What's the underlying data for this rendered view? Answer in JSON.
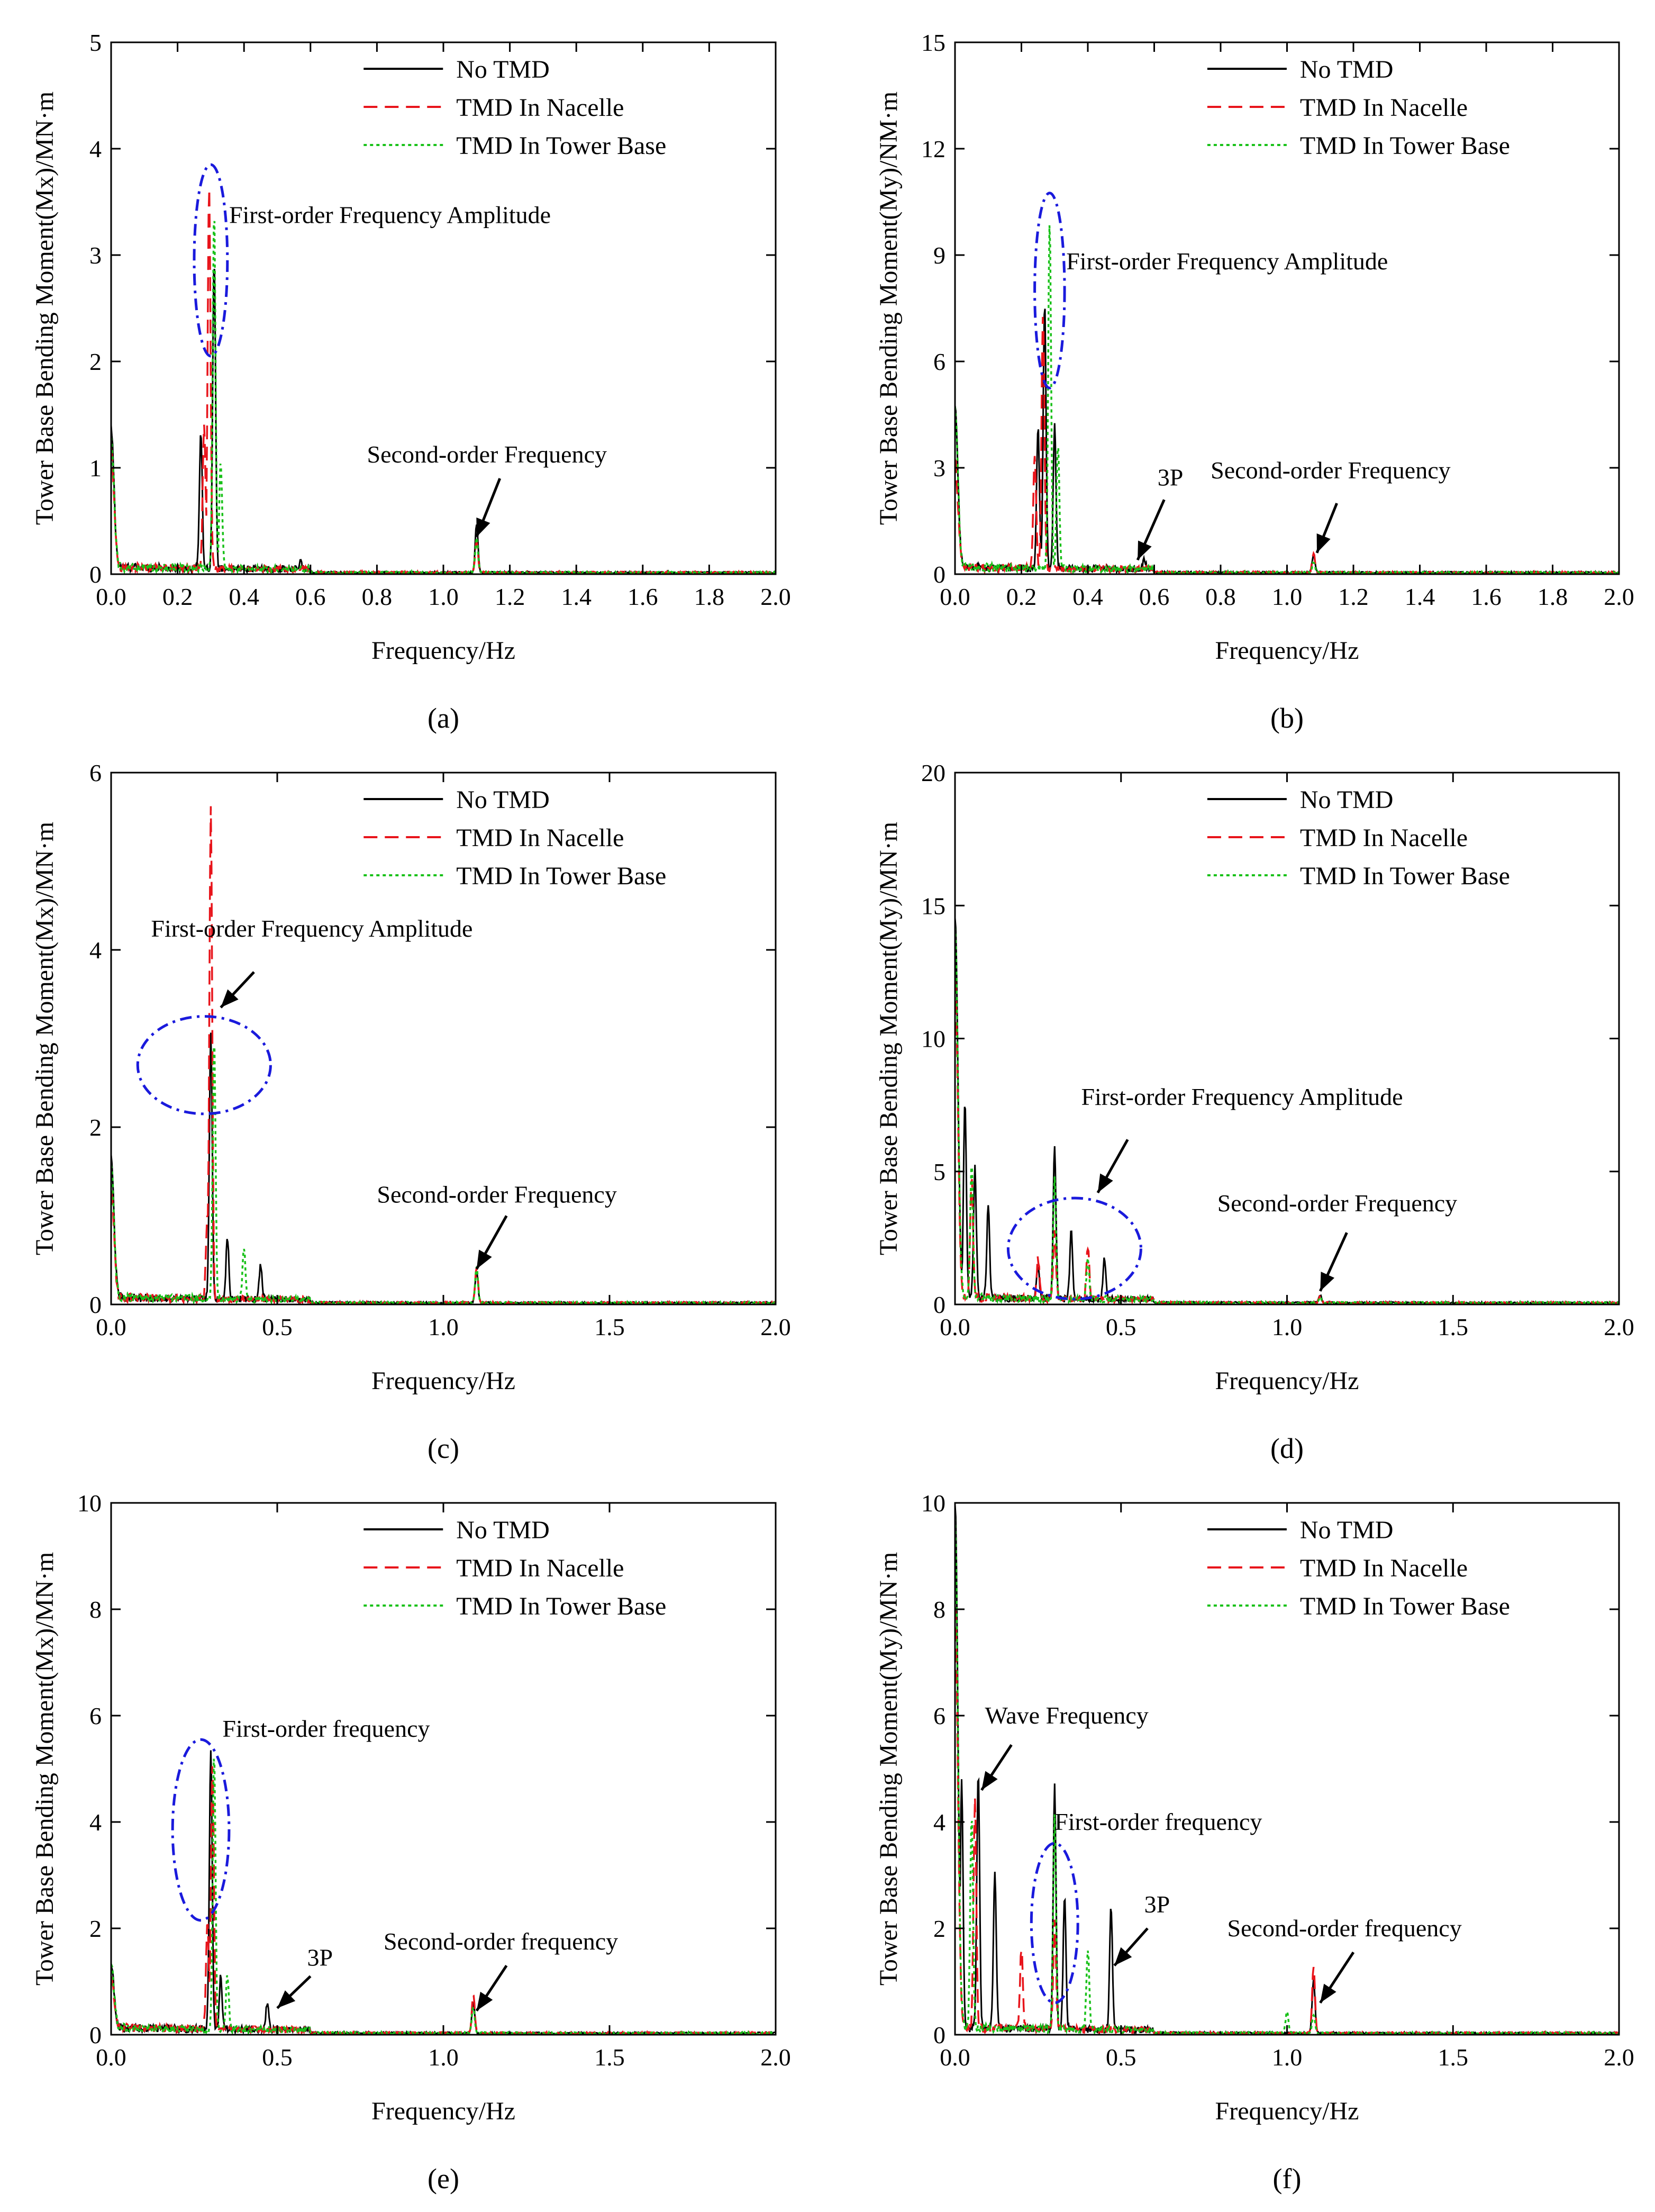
{
  "colors": {
    "no_tmd": "#000000",
    "tmd_nacelle": "#e8141b",
    "tmd_tower_base": "#19c119",
    "highlight_ellipse": "#1a1adc",
    "arrow": "#000000"
  },
  "chart_data": [
    {
      "type": "line",
      "label": "(a)",
      "xlabel": "Frequency/Hz",
      "ylabel": "Tower Base Bending Moment(Mx)/MN·m",
      "xlim": [
        0,
        2
      ],
      "ylim": [
        0,
        5
      ],
      "xticks": [
        "0.0",
        "0.2",
        "0.4",
        "0.6",
        "0.8",
        "1.0",
        "1.2",
        "1.4",
        "1.6",
        "1.8",
        "2.0"
      ],
      "yticks": [
        "0",
        "1",
        "2",
        "3",
        "4",
        "5"
      ],
      "legend": [
        "No TMD",
        "TMD In Nacelle",
        "TMD In Tower Base"
      ],
      "legend_position": "top-right",
      "series": [
        {
          "name": "No TMD",
          "peaks": [
            [
              0.0,
              1.3
            ],
            [
              0.27,
              1.3
            ],
            [
              0.31,
              2.9
            ],
            [
              0.57,
              0.07
            ],
            [
              1.1,
              0.46
            ]
          ]
        },
        {
          "name": "TMD In Nacelle",
          "peaks": [
            [
              0.0,
              1.1
            ],
            [
              0.28,
              1.35
            ],
            [
              0.295,
              3.6
            ],
            [
              1.1,
              0.3
            ]
          ]
        },
        {
          "name": "TMD In Tower Base",
          "peaks": [
            [
              0.0,
              1.2
            ],
            [
              0.31,
              3.35
            ],
            [
              0.33,
              1.0
            ],
            [
              1.1,
              0.32
            ]
          ]
        }
      ],
      "annotations": [
        {
          "text": "First-order Frequency Amplitude",
          "at": [
            0.355,
            3.3
          ],
          "ellipse": {
            "cx": 0.3,
            "cy": 2.95,
            "rx": 0.05,
            "ry": 0.9
          }
        },
        {
          "text": "Second-order Frequency",
          "at": [
            0.77,
            1.05
          ],
          "arrow_from": [
            1.17,
            0.9
          ],
          "arrow_to": [
            1.1,
            0.35
          ]
        }
      ]
    },
    {
      "type": "line",
      "label": "(b)",
      "xlabel": "Frequency/Hz",
      "ylabel": "Tower Base Bending Moment(My)/NM·m",
      "xlim": [
        0,
        2
      ],
      "ylim": [
        0,
        15
      ],
      "xticks": [
        "0.0",
        "0.2",
        "0.4",
        "0.6",
        "0.8",
        "1.0",
        "1.2",
        "1.4",
        "1.6",
        "1.8",
        "2.0"
      ],
      "yticks": [
        "0",
        "3",
        "6",
        "9",
        "12",
        "15"
      ],
      "legend": [
        "No TMD",
        "TMD In Nacelle",
        "TMD In Tower Base"
      ],
      "legend_position": "top-right",
      "series": [
        {
          "name": "No TMD",
          "peaks": [
            [
              0.0,
              4.5
            ],
            [
              0.25,
              4.0
            ],
            [
              0.27,
              7.5
            ],
            [
              0.3,
              4.0
            ],
            [
              0.57,
              0.3
            ],
            [
              1.08,
              0.5
            ]
          ]
        },
        {
          "name": "TMD In Nacelle",
          "peaks": [
            [
              0.0,
              3.0
            ],
            [
              0.24,
              3.2
            ],
            [
              0.265,
              7.2
            ],
            [
              1.08,
              0.55
            ]
          ]
        },
        {
          "name": "TMD In Tower Base",
          "peaks": [
            [
              0.0,
              4.5
            ],
            [
              0.285,
              9.8
            ],
            [
              0.31,
              3.5
            ],
            [
              1.08,
              0.3
            ]
          ]
        }
      ],
      "annotations": [
        {
          "text": "First-order Frequency Amplitude",
          "at": [
            0.335,
            8.6
          ],
          "ellipse": {
            "cx": 0.285,
            "cy": 8.0,
            "rx": 0.045,
            "ry": 2.75
          }
        },
        {
          "text": "3P",
          "at": [
            0.61,
            2.5
          ],
          "arrow_from": [
            0.63,
            2.1
          ],
          "arrow_to": [
            0.55,
            0.4
          ]
        },
        {
          "text": "Second-order Frequency",
          "at": [
            0.77,
            2.7
          ],
          "arrow_from": [
            1.15,
            2.0
          ],
          "arrow_to": [
            1.09,
            0.6
          ]
        }
      ]
    },
    {
      "type": "line",
      "label": "(c)",
      "xlabel": "Frequency/Hz",
      "ylabel": "Tower Base Bending Moment(Mx)/MN·m",
      "xlim": [
        0,
        2
      ],
      "ylim": [
        0,
        6
      ],
      "xticks": [
        "0.0",
        "0.5",
        "1.0",
        "1.5",
        "2.0"
      ],
      "yticks": [
        "0",
        "2",
        "4",
        "6"
      ],
      "legend": [
        "No TMD",
        "TMD In Nacelle",
        "TMD In Tower Base"
      ],
      "legend_position": "top-right",
      "series": [
        {
          "name": "No TMD",
          "peaks": [
            [
              0.0,
              1.6
            ],
            [
              0.3,
              3.0
            ],
            [
              0.35,
              0.7
            ],
            [
              0.45,
              0.4
            ],
            [
              1.1,
              0.35
            ]
          ]
        },
        {
          "name": "TMD In Nacelle",
          "peaks": [
            [
              0.0,
              1.2
            ],
            [
              0.29,
              1.0
            ],
            [
              0.3,
              5.55
            ],
            [
              1.1,
              0.4
            ]
          ]
        },
        {
          "name": "TMD In Tower Base",
          "peaks": [
            [
              0.0,
              1.5
            ],
            [
              0.31,
              2.9
            ],
            [
              0.4,
              0.6
            ],
            [
              1.1,
              0.4
            ]
          ]
        }
      ],
      "annotations": [
        {
          "text": "First-order Frequency Amplitude",
          "at": [
            0.12,
            4.15
          ],
          "arrow_from": [
            0.43,
            3.75
          ],
          "arrow_to": [
            0.33,
            3.35
          ]
        },
        {
          "ellipse": {
            "cx": 0.28,
            "cy": 2.7,
            "rx": 0.2,
            "ry": 0.55
          }
        },
        {
          "text": "Second-order Frequency",
          "at": [
            0.8,
            1.15
          ],
          "arrow_from": [
            1.19,
            1.0
          ],
          "arrow_to": [
            1.1,
            0.4
          ]
        }
      ]
    },
    {
      "type": "line",
      "label": "(d)",
      "xlabel": "Frequency/Hz",
      "ylabel": "Tower Base Bending Moment(My)/MN·m",
      "xlim": [
        0,
        2
      ],
      "ylim": [
        0,
        20
      ],
      "xticks": [
        "0.0",
        "0.5",
        "1.0",
        "1.5",
        "2.0"
      ],
      "yticks": [
        "0",
        "5",
        "10",
        "15",
        "20"
      ],
      "legend": [
        "No TMD",
        "TMD In Nacelle",
        "TMD In Tower Base"
      ],
      "legend_position": "top-right",
      "series": [
        {
          "name": "No TMD",
          "peaks": [
            [
              0.0,
              14.3
            ],
            [
              0.03,
              7.5
            ],
            [
              0.06,
              5.0
            ],
            [
              0.1,
              3.5
            ],
            [
              0.25,
              1.2
            ],
            [
              0.3,
              5.7
            ],
            [
              0.35,
              2.5
            ],
            [
              0.45,
              1.5
            ],
            [
              1.1,
              0.3
            ]
          ]
        },
        {
          "name": "TMD In Nacelle",
          "peaks": [
            [
              0.0,
              12.0
            ],
            [
              0.05,
              4.5
            ],
            [
              0.25,
              1.5
            ],
            [
              0.3,
              2.5
            ],
            [
              0.4,
              2.0
            ],
            [
              1.1,
              0.3
            ]
          ]
        },
        {
          "name": "TMD In Tower Base",
          "peaks": [
            [
              0.0,
              14.0
            ],
            [
              0.05,
              5.0
            ],
            [
              0.3,
              4.5
            ],
            [
              0.4,
              1.5
            ],
            [
              1.1,
              0.2
            ]
          ]
        }
      ],
      "annotations": [
        {
          "text": "First-order Frequency Amplitude",
          "at": [
            0.38,
            7.5
          ],
          "arrow_from": [
            0.52,
            6.2
          ],
          "arrow_to": [
            0.43,
            4.2
          ]
        },
        {
          "ellipse": {
            "cx": 0.36,
            "cy": 2.1,
            "rx": 0.2,
            "ry": 1.9
          }
        },
        {
          "text": "Second-order Frequency",
          "at": [
            0.79,
            3.5
          ],
          "arrow_from": [
            1.18,
            2.7
          ],
          "arrow_to": [
            1.1,
            0.5
          ]
        }
      ]
    },
    {
      "type": "line",
      "label": "(e)",
      "xlabel": "Frequency/Hz",
      "ylabel": "Tower Base Bending Moment(Mx)/MN·m",
      "xlim": [
        0,
        2
      ],
      "ylim": [
        0,
        10
      ],
      "xticks": [
        "0.0",
        "0.5",
        "1.0",
        "1.5",
        "2.0"
      ],
      "yticks": [
        "0",
        "2",
        "4",
        "6",
        "8",
        "10"
      ],
      "legend": [
        "No TMD",
        "TMD In Nacelle",
        "TMD In Tower Base"
      ],
      "legend_position": "top-right",
      "series": [
        {
          "name": "No TMD",
          "peaks": [
            [
              0.0,
              1.2
            ],
            [
              0.3,
              5.3
            ],
            [
              0.33,
              1.0
            ],
            [
              0.47,
              0.5
            ],
            [
              1.09,
              0.6
            ]
          ]
        },
        {
          "name": "TMD In Nacelle",
          "peaks": [
            [
              0.0,
              1.0
            ],
            [
              0.29,
              2.0
            ],
            [
              0.305,
              5.0
            ],
            [
              1.09,
              0.75
            ]
          ]
        },
        {
          "name": "TMD In Tower Base",
          "peaks": [
            [
              0.0,
              1.2
            ],
            [
              0.31,
              5.2
            ],
            [
              0.35,
              1.0
            ],
            [
              1.09,
              0.5
            ]
          ]
        }
      ],
      "annotations": [
        {
          "text": "First-order frequency",
          "at": [
            0.335,
            5.6
          ],
          "ellipse": {
            "cx": 0.27,
            "cy": 3.85,
            "rx": 0.085,
            "ry": 1.7
          }
        },
        {
          "text": "3P",
          "at": [
            0.59,
            1.3
          ],
          "arrow_from": [
            0.6,
            1.1
          ],
          "arrow_to": [
            0.5,
            0.5
          ]
        },
        {
          "text": "Second-order frequency",
          "at": [
            0.82,
            1.6
          ],
          "arrow_from": [
            1.19,
            1.3
          ],
          "arrow_to": [
            1.1,
            0.45
          ]
        }
      ]
    },
    {
      "type": "line",
      "label": "(f)",
      "xlabel": "Frequency/Hz",
      "ylabel": "Tower Base Bending Moment(My)/MN·m",
      "xlim": [
        0,
        2
      ],
      "ylim": [
        0,
        10
      ],
      "xticks": [
        "0.0",
        "0.5",
        "1.0",
        "1.5",
        "2.0"
      ],
      "yticks": [
        "0",
        "2",
        "4",
        "6",
        "8",
        "10"
      ],
      "legend": [
        "No TMD",
        "TMD In Nacelle",
        "TMD In Tower Base"
      ],
      "legend_position": "top-right",
      "series": [
        {
          "name": "No TMD",
          "peaks": [
            [
              0.0,
              9.9
            ],
            [
              0.02,
              4.7
            ],
            [
              0.07,
              4.8
            ],
            [
              0.12,
              3.0
            ],
            [
              0.3,
              4.6
            ],
            [
              0.33,
              2.5
            ],
            [
              0.47,
              2.3
            ],
            [
              1.08,
              1.0
            ]
          ]
        },
        {
          "name": "TMD In Nacelle",
          "peaks": [
            [
              0.0,
              8.0
            ],
            [
              0.06,
              4.3
            ],
            [
              0.2,
              1.5
            ],
            [
              0.3,
              2.0
            ],
            [
              1.08,
              1.25
            ]
          ]
        },
        {
          "name": "TMD In Tower Base",
          "peaks": [
            [
              0.0,
              9.5
            ],
            [
              0.05,
              4.0
            ],
            [
              0.3,
              4.0
            ],
            [
              0.4,
              1.5
            ],
            [
              1.0,
              0.4
            ],
            [
              1.08,
              0.35
            ]
          ]
        }
      ],
      "annotations": [
        {
          "text": "Wave Frequency",
          "at": [
            0.09,
            5.85
          ],
          "arrow_from": [
            0.17,
            5.45
          ],
          "arrow_to": [
            0.08,
            4.6
          ]
        },
        {
          "text": "First-order frequency",
          "at": [
            0.3,
            3.85
          ],
          "ellipse": {
            "cx": 0.3,
            "cy": 2.1,
            "rx": 0.07,
            "ry": 1.5
          }
        },
        {
          "text": "3P",
          "at": [
            0.57,
            2.3
          ],
          "arrow_from": [
            0.58,
            2.0
          ],
          "arrow_to": [
            0.48,
            1.3
          ]
        },
        {
          "text": "Second-order frequency",
          "at": [
            0.82,
            1.85
          ],
          "arrow_from": [
            1.2,
            1.55
          ],
          "arrow_to": [
            1.1,
            0.6
          ]
        }
      ]
    }
  ]
}
